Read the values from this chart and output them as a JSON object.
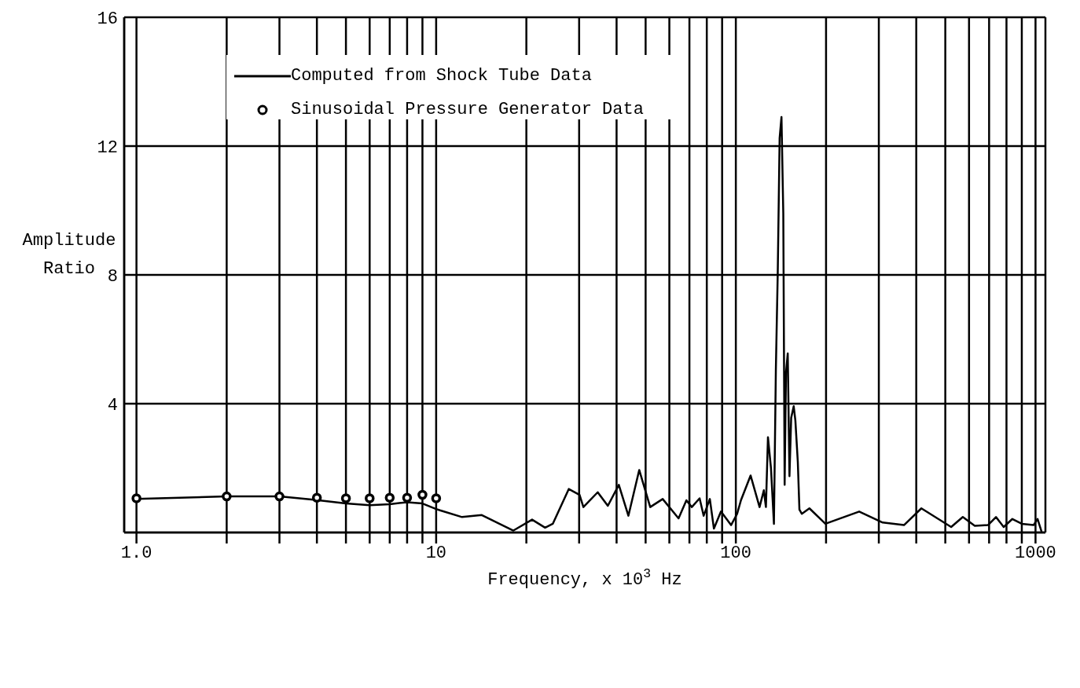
{
  "chart_data": {
    "type": "line",
    "xlabel": "Frequency, x 10$^{3}$ Hz",
    "ylabel": "Amplitude Ratio",
    "log": "x",
    "grid": "xy",
    "legend": "top left",
    "xlim": [
      0.91,
      1079
    ],
    "ylim": [
      0,
      16
    ],
    "xticks": [
      {
        "value": 1,
        "label": "1.0"
      },
      {
        "value": 2,
        "label": null
      },
      {
        "value": 3,
        "label": null
      },
      {
        "value": 4,
        "label": null
      },
      {
        "value": 5,
        "label": null
      },
      {
        "value": 6,
        "label": null
      },
      {
        "value": 7,
        "label": null
      },
      {
        "value": 8,
        "label": null
      },
      {
        "value": 9,
        "label": null
      },
      10,
      {
        "value": 20,
        "label": null
      },
      {
        "value": 30,
        "label": null
      },
      {
        "value": 40,
        "label": null
      },
      {
        "value": 50,
        "label": null
      },
      {
        "value": 60,
        "label": null
      },
      {
        "value": 70,
        "label": null
      },
      {
        "value": 80,
        "label": null
      },
      {
        "value": 90,
        "label": null
      },
      100,
      {
        "value": 200,
        "label": null
      },
      {
        "value": 300,
        "label": null
      },
      {
        "value": 400,
        "label": null
      },
      {
        "value": 500,
        "label": null
      },
      {
        "value": 600,
        "label": null
      },
      {
        "value": 700,
        "label": null
      },
      {
        "value": 800,
        "label": null
      },
      {
        "value": 900,
        "label": null
      },
      1000
    ],
    "yticks": [
      4,
      8,
      12,
      16
    ],
    "series": [
      {
        "name": "Computed from Shock Tube Data",
        "type": "line",
        "color": "#000000",
        "marker": "none",
        "line_style": "solid",
        "x": [
          1,
          2,
          3,
          3.9,
          5,
          6,
          7,
          8,
          9,
          10,
          10.3,
          12.2,
          14.2,
          18.1,
          20.9,
          23.1,
          24.5,
          27.7,
          30.1,
          31,
          34.6,
          37.4,
          40.7,
          43.8,
          47.6,
          51.8,
          57,
          64.4,
          68.4,
          71.3,
          75.7,
          78.1,
          81.9,
          84.5,
          89.2,
          96.4,
          101,
          104,
          112,
          120,
          124,
          126,
          128,
          131,
          134,
          136,
          138,
          140,
          142,
          144,
          145.5,
          147,
          149,
          151,
          153,
          156,
          158,
          161,
          163,
          166,
          176,
          199,
          258,
          309,
          364,
          416,
          523,
          572,
          627,
          694,
          738,
          783,
          837,
          900,
          985,
          1016,
          1048
        ],
        "values": [
          1.04,
          1.12,
          1.12,
          1.02,
          0.9,
          0.85,
          0.88,
          0.94,
          0.9,
          0.73,
          0.69,
          0.48,
          0.54,
          0.06,
          0.4,
          0.15,
          0.27,
          1.35,
          1.17,
          0.79,
          1.25,
          0.83,
          1.48,
          0.52,
          1.94,
          0.79,
          1.04,
          0.44,
          1.0,
          0.79,
          1.06,
          0.52,
          1.04,
          0.12,
          0.65,
          0.23,
          0.58,
          1.0,
          1.77,
          0.79,
          1.31,
          0.79,
          2.96,
          2.0,
          0.27,
          5.04,
          8.08,
          12.25,
          12.9,
          9.92,
          1.48,
          4.96,
          5.56,
          1.75,
          3.56,
          3.92,
          3.48,
          2.19,
          0.71,
          0.58,
          0.75,
          0.27,
          0.65,
          0.31,
          0.23,
          0.75,
          0.17,
          0.48,
          0.21,
          0.23,
          0.48,
          0.17,
          0.42,
          0.27,
          0.23,
          0.42,
          0.02
        ]
      },
      {
        "name": "Sinusoidal Pressure Generator Data",
        "type": "scatter",
        "color": "#000000",
        "marker": "circle",
        "x": [
          1,
          2,
          3,
          4,
          5,
          6,
          7,
          8,
          9,
          10
        ],
        "values": [
          1.06,
          1.12,
          1.12,
          1.08,
          1.06,
          1.06,
          1.08,
          1.08,
          1.17,
          1.06
        ]
      }
    ]
  }
}
